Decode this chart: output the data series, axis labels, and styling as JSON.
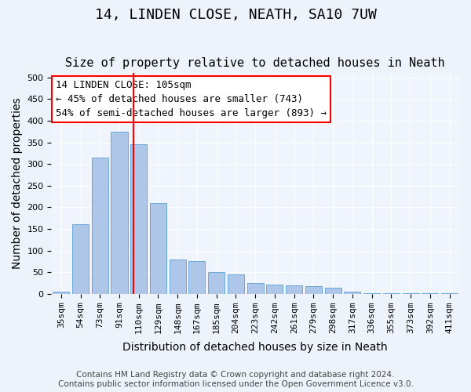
{
  "title": "14, LINDEN CLOSE, NEATH, SA10 7UW",
  "subtitle": "Size of property relative to detached houses in Neath",
  "xlabel": "Distribution of detached houses by size in Neath",
  "ylabel": "Number of detached properties",
  "categories": [
    "35sqm",
    "54sqm",
    "73sqm",
    "91sqm",
    "110sqm",
    "129sqm",
    "148sqm",
    "167sqm",
    "185sqm",
    "204sqm",
    "223sqm",
    "242sqm",
    "261sqm",
    "279sqm",
    "298sqm",
    "317sqm",
    "336sqm",
    "355sqm",
    "373sqm",
    "392sqm",
    "411sqm"
  ],
  "values": [
    5,
    160,
    315,
    375,
    345,
    210,
    80,
    75,
    50,
    45,
    25,
    22,
    20,
    18,
    14,
    5,
    2,
    2,
    2,
    1,
    2
  ],
  "bar_color": "#aec6e8",
  "bar_edge_color": "#5a9fd4",
  "annotation_title": "14 LINDEN CLOSE: 105sqm",
  "annotation_line1": "← 45% of detached houses are smaller (743)",
  "annotation_line2": "54% of semi-detached houses are larger (893) →",
  "annotation_box_color": "white",
  "annotation_box_edge": "red",
  "ylim": [
    0,
    510
  ],
  "yticks": [
    0,
    50,
    100,
    150,
    200,
    250,
    300,
    350,
    400,
    450,
    500
  ],
  "footer_line1": "Contains HM Land Registry data © Crown copyright and database right 2024.",
  "footer_line2": "Contains public sector information licensed under the Open Government Licence v3.0.",
  "bg_color": "#eef3fb",
  "plot_bg_color": "#f0f4fc",
  "title_fontsize": 13,
  "subtitle_fontsize": 11,
  "axis_label_fontsize": 10,
  "tick_fontsize": 8,
  "annotation_fontsize": 9,
  "footer_fontsize": 7.5
}
